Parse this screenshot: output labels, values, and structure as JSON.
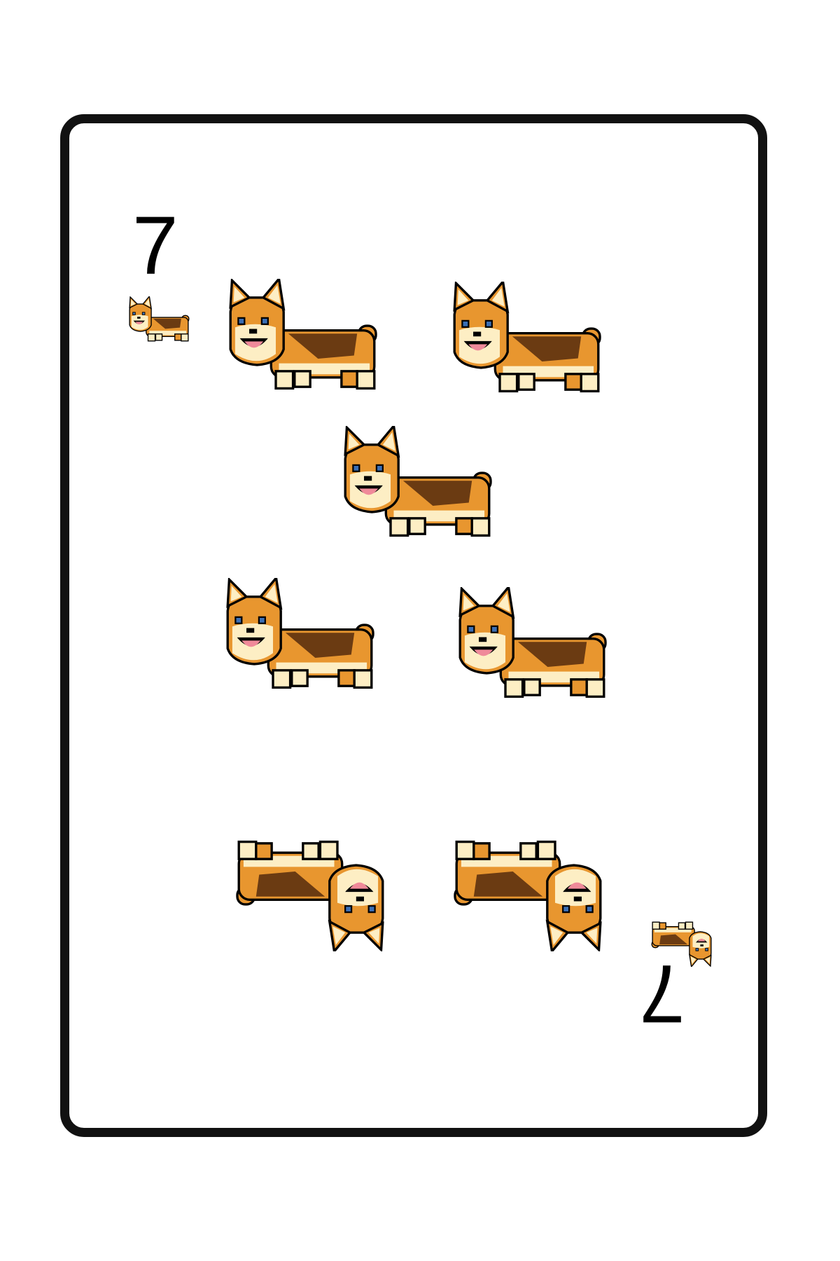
{
  "card": {
    "rank": "7",
    "pip_count": 7,
    "pip_icon": "corgi-icon",
    "corner_icon": "corgi-icon",
    "colors": {
      "border": "#111111",
      "background": "#ffffff",
      "orange": "#e8962f",
      "dark_brown": "#6b3b12",
      "cream": "#fdeec4",
      "tongue": "#f08a9a",
      "eye": "#3b6fb5"
    }
  }
}
